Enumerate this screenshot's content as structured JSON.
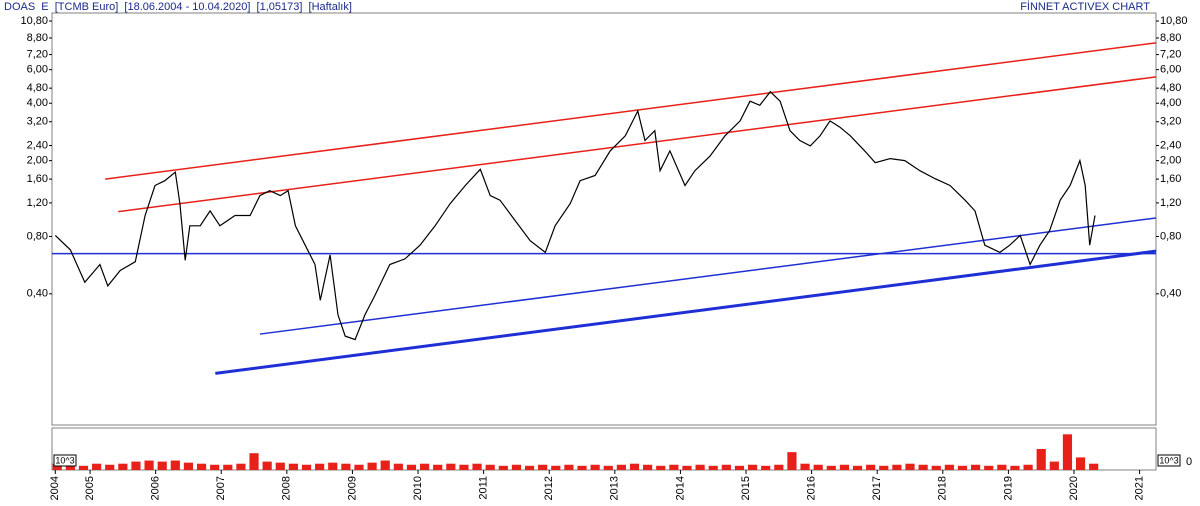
{
  "chart_data": {
    "type": "line",
    "header": "DOAS  E  [TCMB Euro]  [18.06.2004 - 10.04.2020]  [1,05173]  [Haftalık]",
    "brand": "FİNNET ACTIVEX CHART",
    "log_scale": true,
    "color": "#000000",
    "xlim": [
      2004.42,
      2021.25
    ],
    "xticks": [
      {
        "value": 2004.47,
        "label": "2004"
      },
      2005,
      2006,
      2007,
      2008,
      2009,
      2010,
      2011,
      2012,
      2013,
      2014,
      2015,
      2016,
      2017,
      2018,
      2019,
      2020,
      2021
    ],
    "ylim": [
      0.082,
      11.9
    ],
    "yticks": [
      {
        "value": 0.4,
        "label": "0,40"
      },
      {
        "value": 0.8,
        "label": "0,80"
      },
      {
        "value": 1.2,
        "label": "1,20"
      },
      {
        "value": 1.6,
        "label": "1,60"
      },
      {
        "value": 2.0,
        "label": "2,00"
      },
      {
        "value": 2.4,
        "label": "2,40"
      },
      {
        "value": 3.2,
        "label": "3,20"
      },
      {
        "value": 4.0,
        "label": "4,00"
      },
      {
        "value": 4.8,
        "label": "4,80"
      },
      {
        "value": 6.0,
        "label": "6,00"
      },
      {
        "value": 7.2,
        "label": "7,20"
      },
      {
        "value": 8.8,
        "label": "8,80"
      },
      {
        "value": 10.8,
        "label": "10,80"
      }
    ],
    "x": [
      2004.47,
      2004.7,
      2004.92,
      2005.15,
      2005.27,
      2005.46,
      2005.69,
      2005.84,
      2005.99,
      2006.14,
      2006.3,
      2006.37,
      2006.45,
      2006.52,
      2006.68,
      2006.83,
      2006.98,
      2007.21,
      2007.44,
      2007.59,
      2007.74,
      2007.9,
      2008.02,
      2008.13,
      2008.28,
      2008.43,
      2008.51,
      2008.66,
      2008.78,
      2008.89,
      2009.04,
      2009.19,
      2009.34,
      2009.57,
      2009.8,
      2010.03,
      2010.26,
      2010.49,
      2010.72,
      2010.95,
      2011.1,
      2011.25,
      2011.48,
      2011.71,
      2011.94,
      2012.09,
      2012.32,
      2012.47,
      2012.7,
      2012.93,
      2013.16,
      2013.35,
      2013.46,
      2013.61,
      2013.69,
      2013.84,
      2014.07,
      2014.22,
      2014.45,
      2014.68,
      2014.91,
      2015.06,
      2015.21,
      2015.37,
      2015.52,
      2015.67,
      2015.82,
      2015.98,
      2016.13,
      2016.28,
      2016.43,
      2016.59,
      2016.81,
      2016.97,
      2017.2,
      2017.42,
      2017.65,
      2017.88,
      2018.11,
      2018.34,
      2018.49,
      2018.64,
      2018.87,
      2019.02,
      2019.18,
      2019.33,
      2019.48,
      2019.63,
      2019.79,
      2019.94,
      2020.09,
      2020.17,
      2020.24,
      2020.32
    ],
    "values": [
      0.81,
      0.68,
      0.46,
      0.57,
      0.44,
      0.53,
      0.59,
      1.03,
      1.48,
      1.57,
      1.74,
      1.19,
      0.6,
      0.91,
      0.91,
      1.09,
      0.91,
      1.03,
      1.03,
      1.31,
      1.39,
      1.31,
      1.39,
      0.91,
      0.72,
      0.57,
      0.37,
      0.64,
      0.31,
      0.24,
      0.23,
      0.31,
      0.39,
      0.57,
      0.61,
      0.72,
      0.91,
      1.19,
      1.48,
      1.8,
      1.31,
      1.24,
      0.97,
      0.76,
      0.66,
      0.91,
      1.19,
      1.57,
      1.67,
      2.25,
      2.7,
      3.64,
      2.55,
      2.87,
      1.77,
      2.25,
      1.48,
      1.77,
      2.11,
      2.7,
      3.23,
      4.1,
      3.9,
      4.6,
      4.1,
      2.87,
      2.55,
      2.39,
      2.7,
      3.23,
      3.0,
      2.7,
      2.25,
      1.95,
      2.05,
      2.0,
      1.77,
      1.61,
      1.48,
      1.24,
      1.09,
      0.72,
      0.66,
      0.72,
      0.81,
      0.57,
      0.72,
      0.86,
      1.24,
      1.48,
      2.0,
      1.48,
      0.72,
      1.03
    ],
    "trend_lines": [
      {
        "color": "#e8201a",
        "x": [
          2005.23,
          2021.25
        ],
        "y": [
          1.6,
          8.3
        ]
      },
      {
        "color": "#e8201a",
        "x": [
          2005.43,
          2021.25
        ],
        "y": [
          1.08,
          5.5
        ]
      },
      {
        "color": "#1f2fd6",
        "x": [
          2004.42,
          2021.25
        ],
        "y": [
          0.65,
          0.65
        ]
      },
      {
        "color": "#1f2fd6",
        "x": [
          2007.59,
          2021.25
        ],
        "y": [
          0.246,
          1.0
        ]
      },
      {
        "color": "#1f2fd6",
        "x": [
          2006.91,
          2021.25
        ],
        "y": [
          0.153,
          0.67
        ]
      }
    ],
    "volume": {
      "color": "#e8201a",
      "unit": "10^3",
      "ylim": [
        0,
        40
      ],
      "yticks": [
        0
      ],
      "x": [
        2004.5,
        2004.7,
        2004.9,
        2005.1,
        2005.3,
        2005.5,
        2005.7,
        2005.9,
        2006.1,
        2006.3,
        2006.5,
        2006.7,
        2006.9,
        2007.1,
        2007.3,
        2007.5,
        2007.7,
        2007.9,
        2008.1,
        2008.3,
        2008.5,
        2008.7,
        2008.9,
        2009.1,
        2009.3,
        2009.5,
        2009.7,
        2009.9,
        2010.1,
        2010.3,
        2010.5,
        2010.7,
        2010.9,
        2011.1,
        2011.3,
        2011.5,
        2011.7,
        2011.9,
        2012.1,
        2012.3,
        2012.5,
        2012.7,
        2012.9,
        2013.1,
        2013.3,
        2013.5,
        2013.7,
        2013.9,
        2014.1,
        2014.3,
        2014.5,
        2014.7,
        2014.9,
        2015.1,
        2015.3,
        2015.5,
        2015.7,
        2015.9,
        2016.1,
        2016.3,
        2016.5,
        2016.7,
        2016.9,
        2017.1,
        2017.3,
        2017.5,
        2017.7,
        2017.9,
        2018.1,
        2018.3,
        2018.5,
        2018.7,
        2018.9,
        2019.1,
        2019.3,
        2019.5,
        2019.7,
        2019.9,
        2020.1,
        2020.3
      ],
      "values": [
        6,
        5,
        4,
        6,
        5,
        6,
        8,
        9,
        8,
        9,
        7,
        6,
        5,
        5,
        6,
        16,
        8,
        7,
        6,
        5,
        6,
        7,
        6,
        5,
        7,
        9,
        6,
        5,
        6,
        5,
        6,
        5,
        6,
        5,
        4,
        5,
        4,
        5,
        4,
        5,
        4,
        5,
        4,
        5,
        6,
        5,
        4,
        5,
        4,
        5,
        4,
        5,
        4,
        5,
        4,
        5,
        17,
        6,
        5,
        4,
        5,
        4,
        5,
        4,
        5,
        6,
        5,
        4,
        5,
        4,
        5,
        4,
        5,
        4,
        5,
        20,
        8,
        34,
        12,
        6
      ]
    }
  }
}
